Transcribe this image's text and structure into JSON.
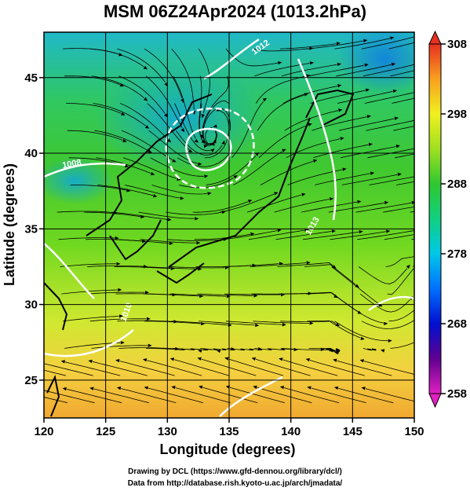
{
  "chart_data": {
    "type": "heatmap",
    "title": "MSM 06Z24Apr2024 (1013.2hPa)",
    "xlabel": "Longitude (degrees)",
    "ylabel": "Latitude  (degrees)",
    "xlim": [
      120,
      150
    ],
    "ylim": [
      22.5,
      48
    ],
    "x_ticks": [
      "120",
      "125",
      "130",
      "135",
      "140",
      "145",
      "150"
    ],
    "y_ticks": [
      "25",
      "30",
      "35",
      "40",
      "45"
    ],
    "colorbar": {
      "min": 258,
      "max": 308,
      "ticks": [
        "308",
        "298",
        "288",
        "278",
        "268",
        "258"
      ],
      "extend": "both"
    },
    "contour_labels": [
      "1012",
      "1008",
      "1013",
      "1010"
    ],
    "overlay": "streamlines",
    "low_center": {
      "lon": 133.3,
      "lat": 40.8
    }
  },
  "credits": {
    "line1": "Drawing by DCL (https://www.gfd-dennou.org/library/dcl/)",
    "line2": "Data from http://database.rish.kyoto-u.ac.jp/arch/jmadata/"
  }
}
